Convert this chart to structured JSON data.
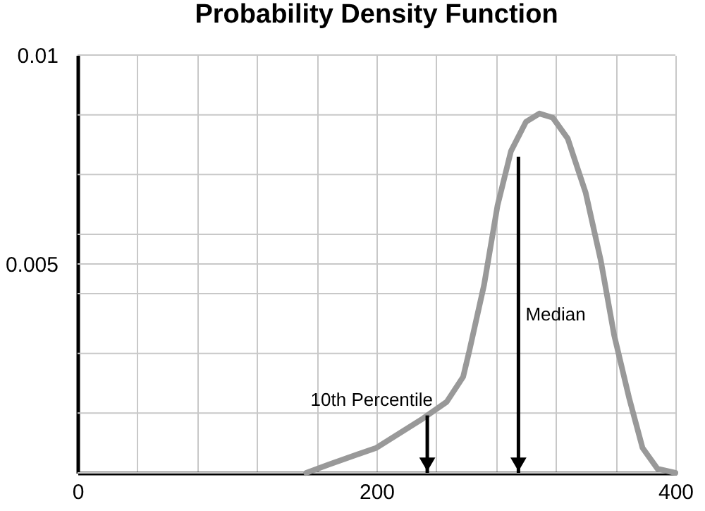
{
  "chart_data": {
    "type": "line",
    "title": "Probability Density Function",
    "x": [
      153,
      168,
      200,
      231,
      247,
      258,
      262,
      272,
      281,
      290,
      300,
      309,
      318,
      328,
      340,
      350,
      359,
      369,
      378,
      388,
      400
    ],
    "series": [
      {
        "color": "#999999",
        "values": [
          0,
          0.0002,
          0.0006,
          0.0013,
          0.0017,
          0.0023,
          0.0029,
          0.0045,
          0.0064,
          0.0077,
          0.0084,
          0.0086,
          0.0085,
          0.008,
          0.0067,
          0.0051,
          0.0033,
          0.0018,
          0.0006,
          0.0001,
          0
        ]
      }
    ],
    "xlim": [
      0,
      400
    ],
    "xticks": [
      0,
      {
        "value": 40,
        "label": null
      },
      {
        "value": 80,
        "label": null
      },
      {
        "value": 120,
        "label": null
      },
      {
        "value": 160,
        "label": null
      },
      200,
      {
        "value": 240,
        "label": null
      },
      {
        "value": 280,
        "label": null
      },
      {
        "value": 320,
        "label": null
      },
      {
        "value": 360,
        "label": null
      },
      400
    ],
    "ylim": [
      0,
      0.01
    ],
    "yticks": [
      {
        "value": 0,
        "label": null
      },
      {
        "value": 0.00143,
        "label": null
      },
      {
        "value": 0.00286,
        "label": null
      },
      {
        "value": 0.00429,
        "label": null
      },
      0.005,
      {
        "value": 0.00571,
        "label": null
      },
      {
        "value": 0.00714,
        "label": null
      },
      {
        "value": 0.00857,
        "label": null
      },
      0.01
    ],
    "grid": true,
    "marker": "none",
    "line_style": "solid",
    "ref_lines": [
      {
        "axis": "x",
        "value": 234,
        "label": "10th Percentile",
        "color": "#000000"
      },
      {
        "axis": "x",
        "value": 295,
        "label": "Median",
        "color": "#000000"
      }
    ]
  }
}
